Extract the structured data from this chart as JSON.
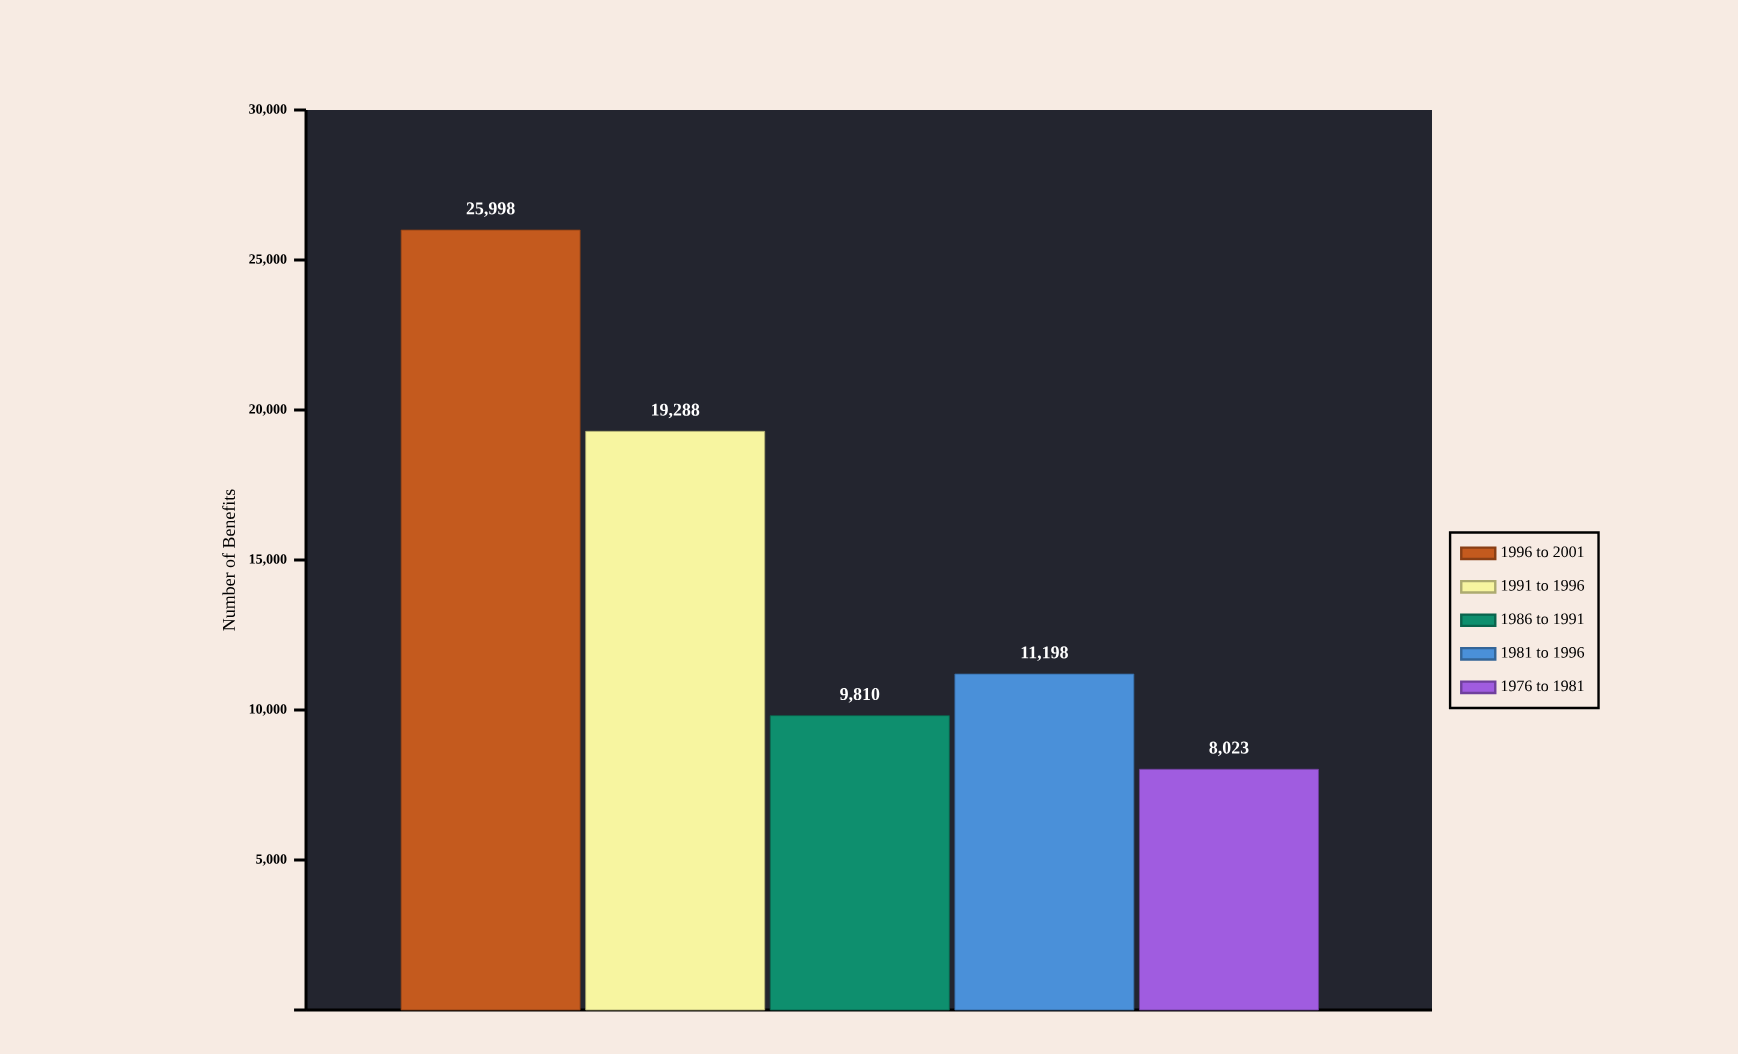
{
  "chart_data": {
    "type": "bar",
    "ylabel": "Number of Benefits",
    "categories": [
      null,
      null,
      null,
      null,
      null
    ],
    "series": [
      {
        "name": "1996 to 2001",
        "color": "#c45a1e",
        "values": [
          25998,
          null,
          null,
          null,
          null
        ],
        "value_labels": [
          "25,998",
          null,
          null,
          null,
          null
        ]
      },
      {
        "name": "1991 to 1996",
        "color": "#f7f5a0",
        "values": [
          null,
          19288,
          null,
          null,
          null
        ],
        "value_labels": [
          null,
          "19,288",
          null,
          null,
          null
        ]
      },
      {
        "name": "1986 to 1991",
        "color": "#0e8f6e",
        "values": [
          null,
          null,
          9810,
          null,
          null
        ],
        "value_labels": [
          null,
          null,
          "9,810",
          null,
          null
        ]
      },
      {
        "name": "1981 to 1996",
        "color": "#4a90d9",
        "values": [
          null,
          null,
          null,
          11198,
          null
        ],
        "value_labels": [
          null,
          null,
          null,
          "11,198",
          null
        ]
      },
      {
        "name": "1976 to 1981",
        "color": "#a05ce0",
        "values": [
          null,
          null,
          null,
          null,
          8023
        ],
        "value_labels": [
          null,
          null,
          null,
          null,
          "8,023"
        ]
      }
    ],
    "ylim": [
      0,
      30000
    ],
    "yticks": [
      {
        "value": 0,
        "label": null
      },
      {
        "value": 5000,
        "label": "5,000"
      },
      {
        "value": 10000,
        "label": "10,000"
      },
      {
        "value": 15000,
        "label": "15,000"
      },
      {
        "value": 20000,
        "label": "20,000"
      },
      {
        "value": 25000,
        "label": "25,000"
      },
      {
        "value": 30000,
        "label": "30,000"
      }
    ],
    "legend": "right"
  }
}
